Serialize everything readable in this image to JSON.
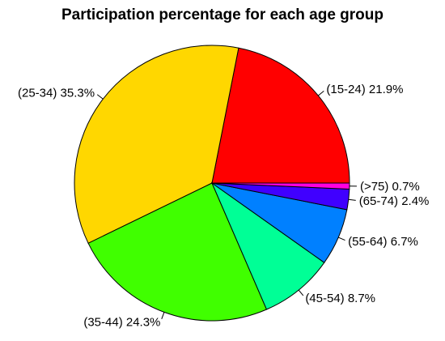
{
  "chart_data": {
    "type": "pie",
    "title": "Participation percentage for each age group",
    "slices": [
      {
        "label": "(15-24) 21.9%",
        "category": "(15-24)",
        "value": 21.9,
        "color": "#FF0000"
      },
      {
        "label": "(25-34) 35.3%",
        "category": "(25-34)",
        "value": 35.3,
        "color": "#FFD700"
      },
      {
        "label": "(35-44) 24.3%",
        "category": "(35-44)",
        "value": 24.3,
        "color": "#40FF00"
      },
      {
        "label": "(45-54) 8.7%",
        "category": "(45-54)",
        "value": 8.7,
        "color": "#00FF96"
      },
      {
        "label": "(55-64) 6.7%",
        "category": "(55-64)",
        "value": 6.7,
        "color": "#0080FF"
      },
      {
        "label": "(65-74) 2.4%",
        "category": "(65-74)",
        "value": 2.4,
        "color": "#4000FF"
      },
      {
        "label": "(>75) 0.7%",
        "category": "(>75)",
        "value": 0.7,
        "color": "#FF00E0"
      }
    ],
    "start_angle": "3 o'clock",
    "direction": "counter-clockwise"
  }
}
